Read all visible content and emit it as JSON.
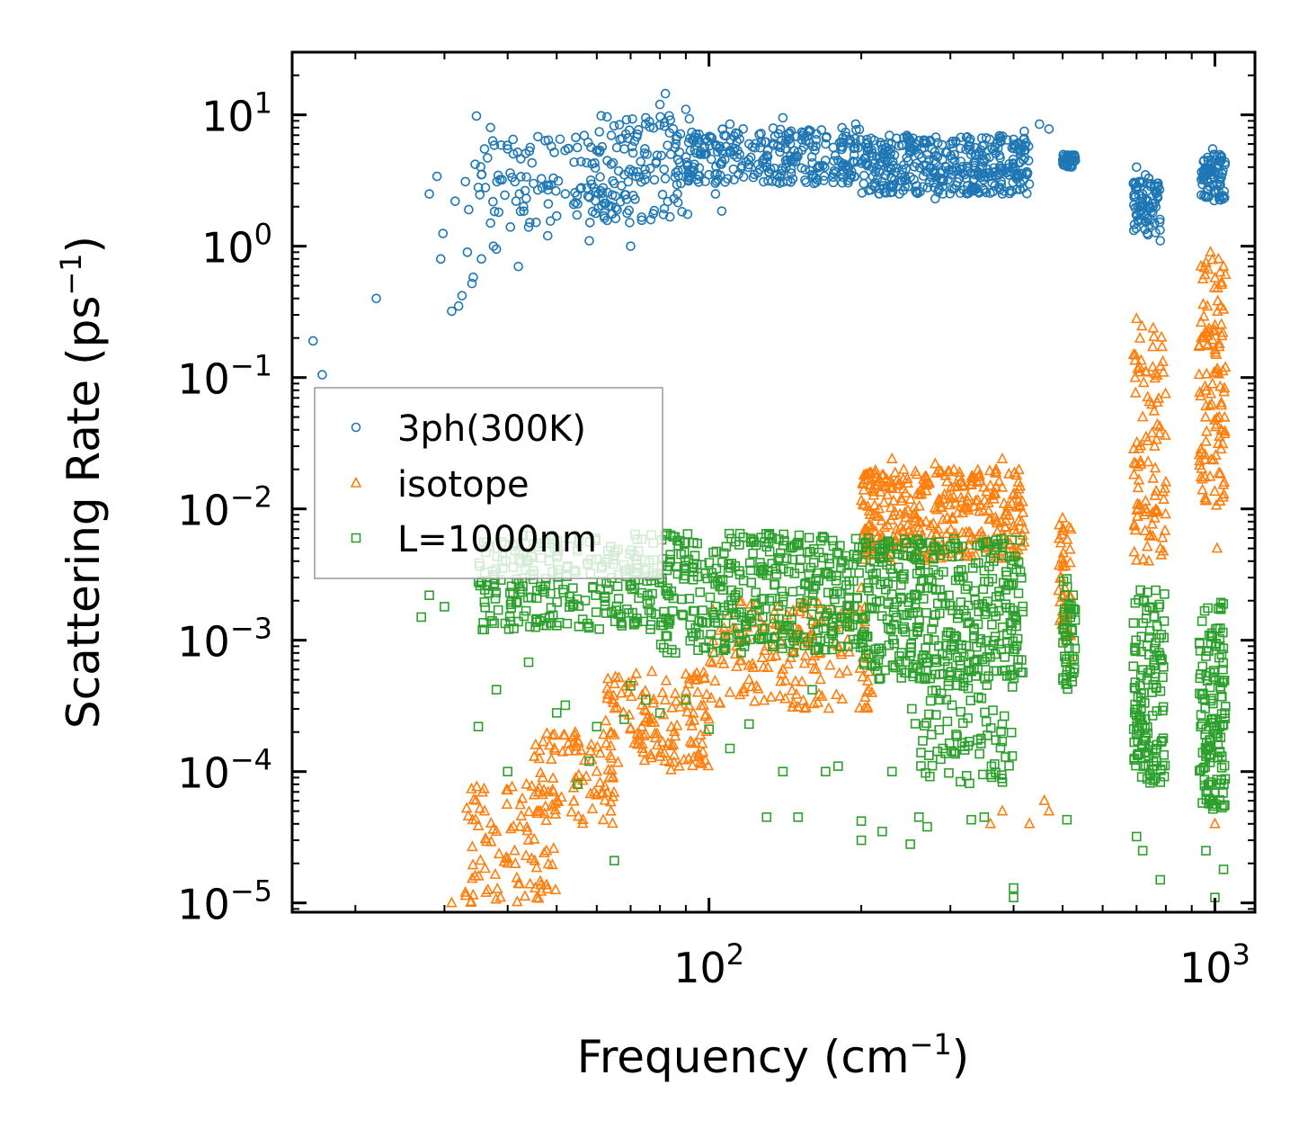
{
  "chart_data": {
    "type": "scatter",
    "x_scale": "log",
    "y_scale": "log",
    "xlabel": "Frequency (cm",
    "xlabel_sup": "−1",
    "xlabel_end": ")",
    "ylabel": "Scattering Rate (ps",
    "ylabel_sup": "−1",
    "ylabel_end": ")",
    "xlim": [
      15,
      1200
    ],
    "ylim": [
      8.5e-06,
      30
    ],
    "x_ticks": [
      {
        "value": 100,
        "base": "10",
        "exp": "2"
      },
      {
        "value": 1000,
        "base": "10",
        "exp": "3"
      }
    ],
    "y_ticks": [
      {
        "value": 10,
        "base": "10",
        "exp": "1"
      },
      {
        "value": 1,
        "base": "10",
        "exp": "0"
      },
      {
        "value": 0.1,
        "base": "10",
        "exp": "−1"
      },
      {
        "value": 0.01,
        "base": "10",
        "exp": "−2"
      },
      {
        "value": 0.001,
        "base": "10",
        "exp": "−3"
      },
      {
        "value": 0.0001,
        "base": "10",
        "exp": "−4"
      },
      {
        "value": 1e-05,
        "base": "10",
        "exp": "−5"
      }
    ],
    "legend_position": "center-left",
    "series": [
      {
        "name": "3ph(300K)",
        "marker": "circle",
        "color": "#1f77b4",
        "points": [
          [
            16.5,
            0.19
          ],
          [
            17.2,
            0.105
          ],
          [
            22,
            0.4
          ],
          [
            28,
            2.5
          ],
          [
            29,
            3.4
          ],
          [
            29.5,
            0.8
          ],
          [
            29.8,
            1.25
          ],
          [
            31,
            0.32
          ],
          [
            31.5,
            2.2
          ],
          [
            32,
            0.35
          ],
          [
            32.5,
            0.42
          ],
          [
            33,
            3.1
          ],
          [
            33.3,
            0.9
          ],
          [
            33.5,
            1.9
          ],
          [
            34,
            0.52
          ],
          [
            34.2,
            0.58
          ],
          [
            34.5,
            4.2
          ],
          [
            34.7,
            9.8
          ],
          [
            35,
            2.8
          ],
          [
            35.5,
            3.5
          ],
          [
            35.5,
            0.8
          ],
          [
            36,
            5.5
          ],
          [
            36.5,
            4.7
          ],
          [
            37,
            1.5
          ],
          [
            37,
            8.0
          ],
          [
            37.5,
            1.0
          ],
          [
            38,
            0.95
          ],
          [
            39,
            3.2
          ],
          [
            40,
            5.5
          ],
          [
            40.5,
            1.4
          ],
          [
            41,
            6.5
          ],
          [
            42,
            0.7
          ],
          [
            43,
            2.0
          ],
          [
            44,
            1.4
          ],
          [
            45,
            3.0
          ],
          [
            48,
            1.2
          ],
          [
            50,
            1.7
          ],
          [
            52,
            2.5
          ],
          [
            55,
            2.1
          ],
          [
            58,
            1.1
          ],
          [
            62,
            1.7
          ],
          [
            65,
            3.0
          ],
          [
            68,
            3.5
          ],
          [
            70,
            1.0
          ],
          [
            72,
            6.8
          ],
          [
            75,
            9.5
          ],
          [
            78,
            3.2
          ],
          [
            80,
            12.0
          ],
          [
            82,
            14.5
          ],
          [
            84,
            5.0
          ],
          [
            86,
            6.0
          ],
          [
            88,
            3.0
          ],
          [
            90,
            11.0
          ],
          [
            93,
            4.0
          ],
          [
            96,
            5.0
          ],
          [
            100,
            3.5
          ],
          [
            103,
            2.5
          ],
          [
            106,
            1.85
          ],
          [
            110,
            8.5
          ],
          [
            115,
            5.0
          ],
          [
            120,
            6.0
          ],
          [
            130,
            4.0
          ],
          [
            140,
            9.5
          ],
          [
            150,
            5.2
          ],
          [
            160,
            3.5
          ],
          [
            170,
            6.0
          ],
          [
            180,
            4.5
          ],
          [
            195,
            8.5
          ],
          [
            210,
            4.0
          ],
          [
            220,
            5.5
          ],
          [
            240,
            3.5
          ],
          [
            260,
            5.0
          ],
          [
            280,
            2.3
          ],
          [
            300,
            6.0
          ],
          [
            320,
            3.5
          ],
          [
            350,
            4.5
          ],
          [
            380,
            2.5
          ],
          [
            400,
            6.5
          ],
          [
            420,
            7.5
          ],
          [
            450,
            8.5
          ],
          [
            470,
            7.8
          ],
          [
            510,
            4.2
          ],
          [
            520,
            4.8
          ],
          [
            530,
            4.5
          ],
          [
            690,
            3.0
          ],
          [
            700,
            4.0
          ],
          [
            720,
            2.5
          ],
          [
            740,
            2.0
          ],
          [
            760,
            1.5
          ],
          [
            780,
            1.1
          ],
          [
            950,
            3.2
          ],
          [
            970,
            4.5
          ],
          [
            990,
            5.5
          ],
          [
            1010,
            3.0
          ],
          [
            1040,
            2.3
          ]
        ],
        "bands": [
          [
            35,
            75,
            1.5,
            7.0,
            110
          ],
          [
            60,
            95,
            1.5,
            10.0,
            110
          ],
          [
            90,
            200,
            3.0,
            8.0,
            260
          ],
          [
            200,
            430,
            2.5,
            7.0,
            380
          ],
          [
            500,
            530,
            4.0,
            5.0,
            40
          ],
          [
            690,
            780,
            1.2,
            3.5,
            80
          ],
          [
            940,
            1050,
            2.2,
            5.0,
            80
          ]
        ]
      },
      {
        "name": "isotope",
        "marker": "triangle",
        "color": "#ff7f0e",
        "points": [
          [
            31,
            1e-05
          ],
          [
            33,
            1.2e-05
          ],
          [
            34.5,
            1.6e-05
          ],
          [
            36,
            5e-05
          ],
          [
            38,
            3.5e-05
          ],
          [
            40,
            2e-05
          ],
          [
            42,
            1.4e-05
          ],
          [
            44,
            3e-05
          ],
          [
            46,
            5e-05
          ],
          [
            50,
            6e-05
          ],
          [
            55,
            8e-05
          ],
          [
            60,
            0.0001
          ],
          [
            65,
            0.00019
          ],
          [
            70,
            0.00021
          ],
          [
            75,
            0.00024
          ],
          [
            80,
            0.00013
          ],
          [
            85,
            0.00016
          ],
          [
            90,
            0.00055
          ],
          [
            95,
            0.0004
          ],
          [
            100,
            0.00025
          ],
          [
            105,
            0.00033
          ],
          [
            110,
            0.0004
          ],
          [
            115,
            0.0007
          ],
          [
            120,
            0.0005
          ],
          [
            130,
            0.0009
          ],
          [
            140,
            0.0006
          ],
          [
            150,
            0.0012
          ],
          [
            160,
            0.0007
          ],
          [
            170,
            0.0014
          ],
          [
            180,
            0.0009
          ],
          [
            200,
            0.0025
          ],
          [
            210,
            0.0045
          ],
          [
            220,
            0.018
          ],
          [
            230,
            0.024
          ],
          [
            240,
            0.012
          ],
          [
            260,
            0.008
          ],
          [
            280,
            0.022
          ],
          [
            300,
            0.012
          ],
          [
            330,
            0.006
          ],
          [
            360,
            0.015
          ],
          [
            380,
            0.024
          ],
          [
            400,
            0.005
          ],
          [
            420,
            0.007
          ],
          [
            460,
            6e-05
          ],
          [
            470,
            5e-05
          ],
          [
            500,
            0.0085
          ],
          [
            510,
            0.002
          ],
          [
            520,
            0.0007
          ],
          [
            360,
            4e-05
          ],
          [
            380,
            5e-05
          ],
          [
            430,
            4e-05
          ],
          [
            700,
            0.28
          ],
          [
            710,
            0.12
          ],
          [
            720,
            0.05
          ],
          [
            730,
            0.01
          ],
          [
            740,
            0.004
          ],
          [
            760,
            0.03
          ],
          [
            780,
            0.005
          ],
          [
            800,
            0.016
          ],
          [
            940,
            0.2
          ],
          [
            960,
            0.75
          ],
          [
            980,
            0.9
          ],
          [
            1000,
            0.25
          ],
          [
            1020,
            0.05
          ],
          [
            1040,
            0.7
          ],
          [
            1010,
            0.005
          ],
          [
            1000,
            4e-05
          ]
        ],
        "bands": [
          [
            33,
            50,
            1e-05,
            8e-05,
            90
          ],
          [
            45,
            65,
            4e-05,
            0.0002,
            80
          ],
          [
            62,
            100,
            0.0001,
            0.0006,
            120
          ],
          [
            100,
            210,
            0.0003,
            0.002,
            160
          ],
          [
            200,
            250,
            0.004,
            0.02,
            120
          ],
          [
            250,
            320,
            0.004,
            0.02,
            110
          ],
          [
            320,
            420,
            0.004,
            0.02,
            110
          ],
          [
            490,
            520,
            0.001,
            0.008,
            40
          ],
          [
            690,
            800,
            0.004,
            0.25,
            90
          ],
          [
            930,
            1050,
            0.01,
            0.8,
            110
          ]
        ]
      },
      {
        "name": "L=1000nm",
        "marker": "square",
        "color": "#2ca02c",
        "points": [
          [
            27,
            0.0015
          ],
          [
            28,
            0.0022
          ],
          [
            30,
            0.0018
          ],
          [
            35,
            0.00022
          ],
          [
            38,
            0.00042
          ],
          [
            40,
            0.0001
          ],
          [
            44,
            0.00068
          ],
          [
            50,
            0.00028
          ],
          [
            52,
            0.00032
          ],
          [
            55,
            8e-05
          ],
          [
            58,
            0.00012
          ],
          [
            60,
            0.00022
          ],
          [
            65,
            2.1e-05
          ],
          [
            68,
            0.00025
          ],
          [
            70,
            0.00045
          ],
          [
            75,
            0.00035
          ],
          [
            80,
            0.00028
          ],
          [
            90,
            0.00035
          ],
          [
            100,
            0.00021
          ],
          [
            110,
            0.00015
          ],
          [
            120,
            0.00023
          ],
          [
            130,
            4.5e-05
          ],
          [
            140,
            0.0001
          ],
          [
            150,
            4.5e-05
          ],
          [
            160,
            0.00042
          ],
          [
            170,
            0.0001
          ],
          [
            180,
            0.00011
          ],
          [
            200,
            4.2e-05
          ],
          [
            200,
            3e-05
          ],
          [
            220,
            3.5e-05
          ],
          [
            230,
            0.0001
          ],
          [
            250,
            2.8e-05
          ],
          [
            260,
            4.5e-05
          ],
          [
            270,
            3.8e-05
          ],
          [
            290,
            0.00015
          ],
          [
            330,
            4.3e-05
          ],
          [
            350,
            4.5e-05
          ],
          [
            400,
            1.1e-05
          ],
          [
            400,
            1.3e-05
          ],
          [
            510,
            4.3e-05
          ],
          [
            700,
            3.2e-05
          ],
          [
            720,
            2.5e-05
          ],
          [
            780,
            1.5e-05
          ],
          [
            960,
            2.5e-05
          ],
          [
            1000,
            1.1e-05
          ],
          [
            1040,
            1.8e-05
          ]
        ],
        "bands": [
          [
            35,
            80,
            0.0012,
            0.0065,
            260
          ],
          [
            80,
            200,
            0.0008,
            0.0065,
            380
          ],
          [
            200,
            420,
            0.0005,
            0.006,
            380
          ],
          [
            250,
            400,
            8e-05,
            0.0008,
            110
          ],
          [
            500,
            530,
            0.0004,
            0.003,
            50
          ],
          [
            690,
            800,
            8e-05,
            0.0025,
            140
          ],
          [
            930,
            1050,
            5e-05,
            0.002,
            140
          ]
        ]
      }
    ]
  }
}
